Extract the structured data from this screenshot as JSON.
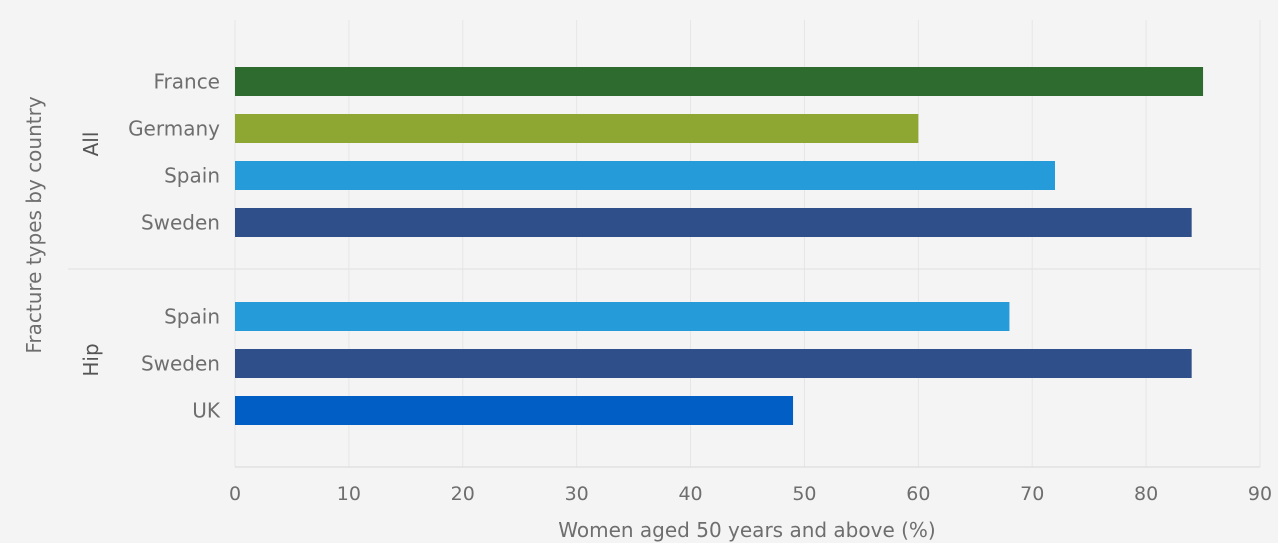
{
  "chart_data": {
    "type": "bar",
    "orientation": "horizontal",
    "xlabel": "Women aged 50 years and above (%)",
    "ylabel": "Fracture types by country",
    "xlim": [
      0,
      90
    ],
    "xticks": [
      0,
      10,
      20,
      30,
      40,
      50,
      60,
      70,
      80,
      90
    ],
    "grid": true,
    "groups": [
      {
        "name": "All",
        "bars": [
          {
            "category": "France",
            "value": 85,
            "color": "#2e6b2e"
          },
          {
            "category": "Germany",
            "value": 60,
            "color": "#8ea632"
          },
          {
            "category": "Spain",
            "value": 72,
            "color": "#269bd9"
          },
          {
            "category": "Sweden",
            "value": 84,
            "color": "#2e4f8a"
          }
        ]
      },
      {
        "name": "Hip",
        "bars": [
          {
            "category": "Spain",
            "value": 68,
            "color": "#269bd9"
          },
          {
            "category": "Sweden",
            "value": 84,
            "color": "#2e4f8a"
          },
          {
            "category": "UK",
            "value": 49,
            "color": "#005ec4"
          }
        ]
      }
    ]
  }
}
